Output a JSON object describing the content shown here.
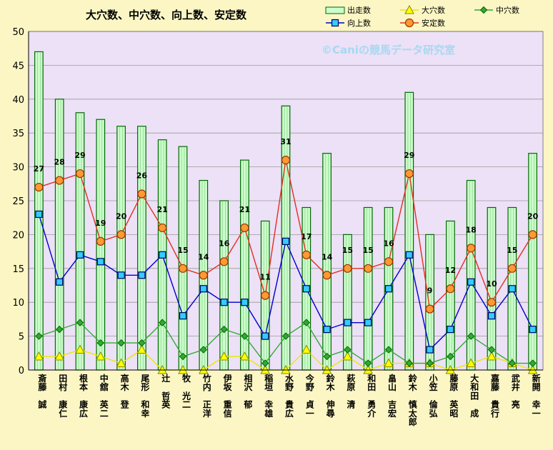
{
  "chart_data": {
    "type": "bar",
    "title": "大穴数、中穴数、向上数、安定数",
    "watermark": "©Caniの競馬データ研究室",
    "colors": {
      "background": "#fbf6c4",
      "plot_background": "#ece1f7",
      "bar_fill": "#ccffcc",
      "bar_stroke": "#006600",
      "daiana": "#ffff00",
      "chuuana": "#33aa33",
      "koujou": "#0000cc",
      "antei": "#e03020",
      "antei_marker": "#ff9933",
      "watermark": "#a8d8f0"
    },
    "ylim": [
      0,
      50
    ],
    "yticks": [
      0,
      5,
      10,
      15,
      20,
      25,
      30,
      35,
      40,
      45,
      50
    ],
    "grid": true,
    "legend_position": "top-right",
    "categories": [
      "斎藤　誠",
      "田村　康仁",
      "根本　康広",
      "中舘　英二",
      "高木　登",
      "尾形　和幸",
      "辻　哲英",
      "牧　光二",
      "竹内　正洋",
      "伊坂　重信",
      "相沢　郁",
      "稲垣　幸雄",
      "水野　貴広",
      "今野　貞一",
      "鈴木　伸尋",
      "萩原　清",
      "和田　勇介",
      "畠山　吉宏",
      "鈴木　慎太郎",
      "小笠　倫弘",
      "藤原　英昭",
      "大和田　成",
      "嘉藤　貴行",
      "武井　亮",
      "新開　幸一"
    ],
    "series": [
      {
        "name": "出走数",
        "kind": "bar",
        "values": [
          47,
          40,
          38,
          37,
          36,
          36,
          34,
          33,
          28,
          25,
          31,
          22,
          39,
          24,
          32,
          20,
          24,
          24,
          41,
          20,
          22,
          28,
          24,
          24,
          32
        ]
      },
      {
        "name": "大穴数",
        "kind": "line",
        "values": [
          2,
          2,
          3,
          2,
          1,
          3,
          0,
          0,
          0,
          2,
          2,
          0,
          0,
          3,
          0,
          2,
          0,
          1,
          1,
          1,
          0,
          1,
          2,
          1,
          0
        ]
      },
      {
        "name": "中穴数",
        "kind": "line",
        "values": [
          5,
          6,
          7,
          4,
          4,
          4,
          7,
          2,
          3,
          6,
          5,
          1,
          5,
          7,
          2,
          3,
          1,
          3,
          1,
          1,
          2,
          5,
          3,
          1,
          1
        ]
      },
      {
        "name": "向上数",
        "kind": "line",
        "values": [
          23,
          13,
          17,
          16,
          14,
          14,
          17,
          8,
          12,
          10,
          10,
          5,
          19,
          12,
          6,
          7,
          7,
          12,
          17,
          3,
          6,
          13,
          8,
          12,
          6
        ]
      },
      {
        "name": "安定数",
        "kind": "line",
        "labeled": true,
        "values": [
          27,
          28,
          29,
          19,
          20,
          26,
          21,
          15,
          14,
          16,
          21,
          11,
          31,
          17,
          14,
          15,
          15,
          16,
          29,
          9,
          12,
          18,
          10,
          15,
          20
        ]
      }
    ]
  }
}
